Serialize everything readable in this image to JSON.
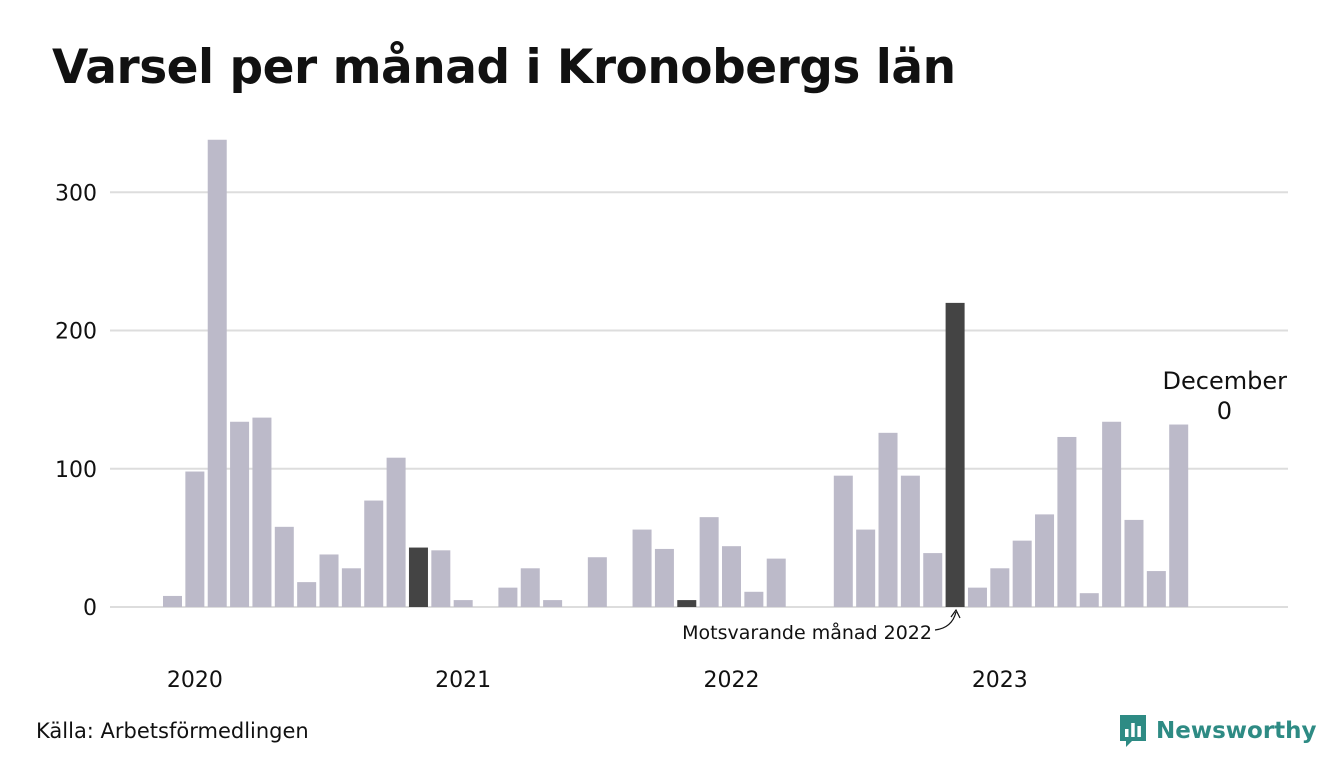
{
  "title": "Varsel per månad i Kronobergs län",
  "source": "Källa: Arbetsförmedlingen",
  "brand": {
    "name": "Newsworthy",
    "icon": "bar-chart-logo-icon",
    "color": "#2e8b84"
  },
  "colors": {
    "bar": "#bcbac9",
    "highlight": "#444444",
    "grid": "#dddddd"
  },
  "chart_data": {
    "type": "bar",
    "title": "Varsel per månad i Kronobergs län",
    "xlabel": "",
    "ylabel": "",
    "ylim": [
      0,
      340
    ],
    "yticks": [
      0,
      100,
      200,
      300
    ],
    "grid": true,
    "year_labels": [
      {
        "label": "2020",
        "month_index": 1
      },
      {
        "label": "2021",
        "month_index": 13
      },
      {
        "label": "2022",
        "month_index": 25
      },
      {
        "label": "2023",
        "month_index": 37
      }
    ],
    "values": [
      8,
      98,
      338,
      134,
      137,
      58,
      18,
      38,
      28,
      77,
      108,
      43,
      41,
      5,
      0,
      14,
      28,
      5,
      0,
      36,
      0,
      56,
      42,
      5,
      65,
      44,
      11,
      35,
      0,
      0,
      95,
      56,
      126,
      95,
      39,
      220,
      14,
      28,
      48,
      67,
      123,
      10,
      134,
      63,
      26,
      132,
      0
    ],
    "highlight_indices": [
      11,
      23,
      35
    ],
    "annotations": {
      "last_label": "December",
      "last_value": "0",
      "compare_label": "Motsvarande månad 2022"
    }
  }
}
